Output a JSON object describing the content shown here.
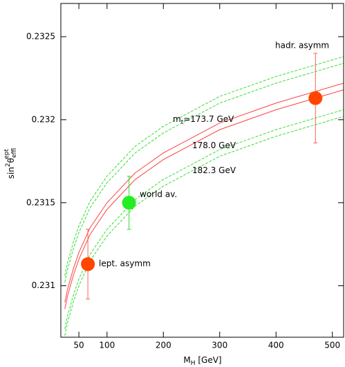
{
  "chart_data": {
    "type": "line",
    "x_label": {
      "main": "M",
      "sub": "H",
      "rest": " [GeV]"
    },
    "y_label": {
      "main": "sin",
      "sup1": "2",
      "theta": "θ",
      "sub": "eff",
      "sup": "lept"
    },
    "xlim": [
      18,
      520
    ],
    "ylim": [
      0.23069,
      0.2327
    ],
    "xticks": [
      50,
      100,
      200,
      300,
      400,
      500
    ],
    "yticks": [
      0.231,
      0.2315,
      0.232,
      0.2325
    ],
    "x": [
      25,
      30,
      40,
      50,
      70,
      100,
      150,
      200,
      300,
      400,
      500,
      520
    ],
    "series": [
      {
        "color": "#ff4040",
        "dashed": false,
        "values": [
          0.2309,
          0.23098,
          0.2311,
          0.2312,
          0.23135,
          0.2315,
          0.23168,
          0.2318,
          0.23198,
          0.2321,
          0.2322,
          0.23222
        ]
      },
      {
        "color": "#ff4040",
        "dashed": false,
        "values": [
          0.23086,
          0.23094,
          0.23106,
          0.23116,
          0.23131,
          0.23146,
          0.23164,
          0.23176,
          0.23194,
          0.23206,
          0.23216,
          0.23218
        ]
      },
      {
        "color": "#33dd33",
        "dashed": true,
        "values": [
          0.23106,
          0.23114,
          0.23126,
          0.23136,
          0.23151,
          0.23166,
          0.23184,
          0.23196,
          0.23214,
          0.23226,
          0.23236,
          0.23238
        ]
      },
      {
        "color": "#33dd33",
        "dashed": true,
        "values": [
          0.23102,
          0.2311,
          0.23122,
          0.23132,
          0.23147,
          0.23162,
          0.2318,
          0.23192,
          0.2321,
          0.23222,
          0.23232,
          0.23234
        ]
      },
      {
        "color": "#33dd33",
        "dashed": true,
        "values": [
          0.23074,
          0.23082,
          0.23094,
          0.23104,
          0.23119,
          0.23134,
          0.23152,
          0.23164,
          0.23182,
          0.23194,
          0.23204,
          0.23206
        ]
      },
      {
        "color": "#33dd33",
        "dashed": true,
        "values": [
          0.2307,
          0.23078,
          0.2309,
          0.231,
          0.23115,
          0.2313,
          0.23148,
          0.2316,
          0.23178,
          0.2319,
          0.232,
          0.23202
        ]
      }
    ],
    "points": [
      {
        "label": "lept. asymm",
        "x": 66,
        "y": 0.23113,
        "err": 0.00021,
        "color": "#ff4500",
        "err_color": "#ff6050"
      },
      {
        "label": "world av.",
        "x": 139,
        "y": 0.2315,
        "err": 0.00016,
        "color": "#22ee22",
        "err_color": "#33dd33"
      },
      {
        "label": "hadr. asymm",
        "x": 470,
        "y": 0.23213,
        "err": 0.00027,
        "color": "#ff4500",
        "err_color": "#ff6050"
      }
    ],
    "annotations": [
      {
        "main": "m",
        "sub": "t",
        "rest": "=173.7 GeV"
      },
      {
        "main": "178.0 GeV"
      },
      {
        "main": "182.3 GeV"
      }
    ]
  }
}
